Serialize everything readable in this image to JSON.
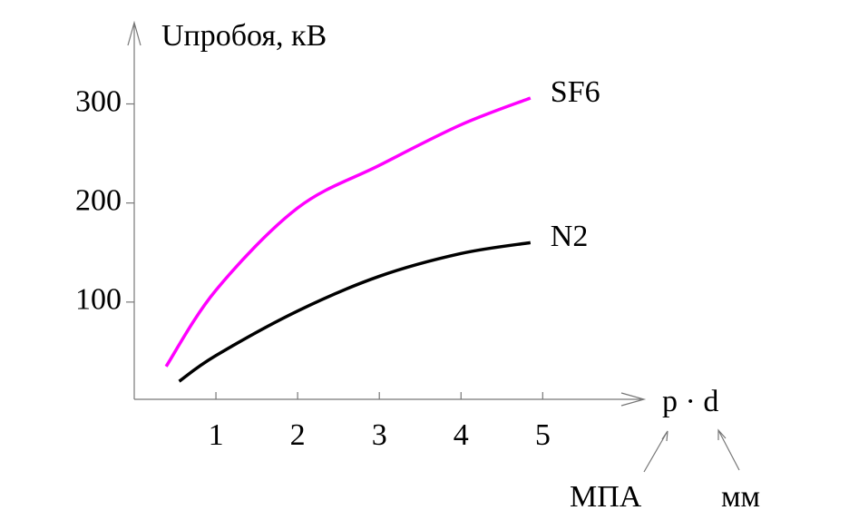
{
  "chart_data": {
    "type": "line",
    "y_label": "Uпробоя, кВ",
    "x_label": "p · d",
    "annotations": [
      "МПА",
      "мм"
    ],
    "xlim": [
      0,
      6.24
    ],
    "ylim": [
      0,
      382
    ],
    "xticks": [
      1,
      2,
      3,
      4,
      5
    ],
    "yticks": [
      100,
      200,
      300
    ],
    "series": [
      {
        "name": "SF6",
        "color": "#ff00ff",
        "x": [
          0.39,
          1,
          2,
          3,
          4,
          4.85
        ],
        "values": [
          35,
          112,
          195,
          238,
          279,
          306
        ]
      },
      {
        "name": "N2",
        "color": "#000000",
        "x": [
          0.55,
          1,
          2,
          3,
          4,
          4.85
        ],
        "values": [
          20,
          46,
          91,
          126,
          149,
          160
        ]
      }
    ]
  }
}
